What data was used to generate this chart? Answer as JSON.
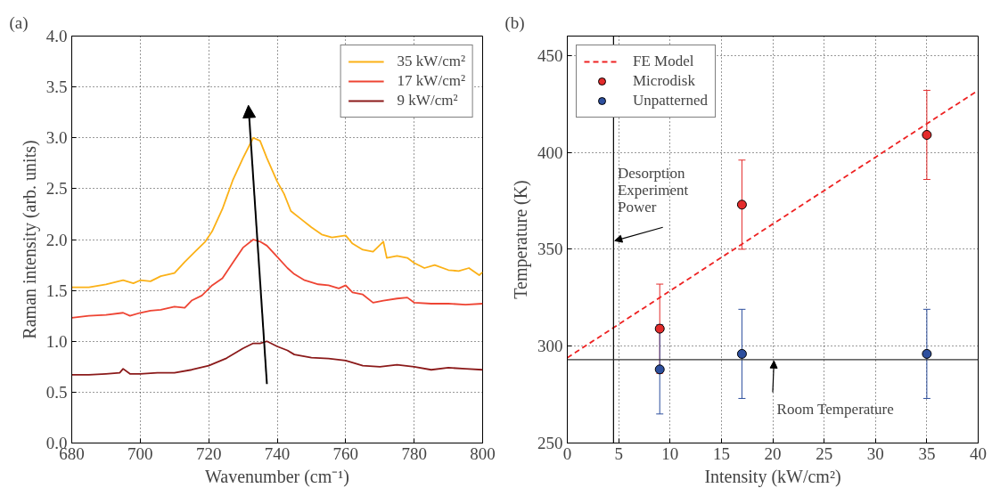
{
  "chart_data": [
    {
      "type": "line",
      "title": "(a)",
      "xlabel": "Wavenumber (cm⁻¹)",
      "ylabel": "Raman intensity (arb. units)",
      "xlim": [
        680,
        800
      ],
      "ylim": [
        0,
        4
      ],
      "xticks": [
        680,
        700,
        720,
        740,
        760,
        780,
        800
      ],
      "yticks": [
        {
          "value": 0,
          "label": "0.0"
        },
        {
          "value": 0.5,
          "label": "0.5"
        },
        {
          "value": 1,
          "label": "1.0"
        },
        {
          "value": 1.5,
          "label": "1.5"
        },
        {
          "value": 2,
          "label": "2.0"
        },
        {
          "value": 2.5,
          "label": "2.5"
        },
        {
          "value": 3,
          "label": "3.0"
        },
        {
          "value": 3.5,
          "label": "3.5"
        },
        {
          "value": 4,
          "label": "4.0"
        }
      ],
      "grid": true,
      "legend": "top right",
      "line_style": "solid",
      "marker": "none",
      "series": [
        {
          "name": "35 kW/cm²",
          "color": "#fbb117",
          "x": [
            680,
            685,
            690,
            695,
            698,
            700,
            703,
            706,
            710,
            713,
            716,
            719,
            721,
            724,
            727,
            730,
            733,
            735,
            737,
            740,
            742,
            744,
            747,
            750,
            753,
            756,
            760,
            762,
            765,
            768,
            771,
            772,
            775,
            778,
            780,
            783,
            786,
            790,
            793,
            796,
            799,
            800
          ],
          "values": [
            1.53,
            1.53,
            1.56,
            1.6,
            1.57,
            1.6,
            1.59,
            1.64,
            1.67,
            1.78,
            1.88,
            1.98,
            2.08,
            2.3,
            2.58,
            2.8,
            3.0,
            2.97,
            2.8,
            2.57,
            2.45,
            2.28,
            2.2,
            2.12,
            2.05,
            2.02,
            2.04,
            1.96,
            1.9,
            1.88,
            1.98,
            1.82,
            1.84,
            1.82,
            1.77,
            1.72,
            1.75,
            1.7,
            1.69,
            1.72,
            1.65,
            1.68
          ]
        },
        {
          "name": "17 kW/cm²",
          "color": "#ee4433",
          "x": [
            680,
            685,
            690,
            695,
            697,
            700,
            703,
            706,
            710,
            713,
            715,
            718,
            721,
            724,
            727,
            730,
            733,
            735,
            737,
            740,
            743,
            745,
            748,
            752,
            755,
            758,
            760,
            762,
            765,
            768,
            771,
            775,
            778,
            780,
            785,
            790,
            795,
            800
          ],
          "values": [
            1.23,
            1.25,
            1.26,
            1.28,
            1.25,
            1.28,
            1.3,
            1.31,
            1.34,
            1.33,
            1.4,
            1.45,
            1.55,
            1.62,
            1.77,
            1.92,
            2.0,
            1.98,
            1.94,
            1.83,
            1.72,
            1.66,
            1.6,
            1.56,
            1.55,
            1.52,
            1.55,
            1.48,
            1.46,
            1.38,
            1.4,
            1.42,
            1.43,
            1.38,
            1.37,
            1.37,
            1.36,
            1.37
          ]
        },
        {
          "name": "9 kW/cm²",
          "color": "#8b1a1a",
          "x": [
            680,
            685,
            690,
            694,
            695,
            697,
            700,
            705,
            710,
            715,
            720,
            725,
            730,
            733,
            735,
            737,
            740,
            743,
            745,
            750,
            755,
            760,
            765,
            770,
            775,
            780,
            785,
            790,
            795,
            800
          ],
          "values": [
            0.67,
            0.67,
            0.68,
            0.69,
            0.73,
            0.68,
            0.68,
            0.69,
            0.69,
            0.72,
            0.76,
            0.83,
            0.93,
            0.98,
            0.98,
            1.0,
            0.95,
            0.91,
            0.87,
            0.84,
            0.83,
            0.81,
            0.76,
            0.75,
            0.77,
            0.75,
            0.72,
            0.74,
            0.73,
            0.72
          ]
        }
      ]
    },
    {
      "type": "scatter",
      "title": "(b)",
      "xlabel": "Intensity (kW/cm²)",
      "ylabel": "Temperature (K)",
      "xlim": [
        0,
        40
      ],
      "ylim": [
        250,
        460
      ],
      "xticks": [
        0,
        5,
        10,
        15,
        20,
        25,
        30,
        35,
        40
      ],
      "yticks": [
        250,
        300,
        350,
        400,
        450
      ],
      "grid": true,
      "legend": "top left",
      "marker": "circle",
      "series": [
        {
          "name": "FE Model",
          "type": "line",
          "line_style": "dashed",
          "marker": "none",
          "color": "#ee2222",
          "x": [
            0,
            40
          ],
          "values": [
            294,
            432
          ]
        },
        {
          "name": "Microdisk",
          "color": "#e32b2b",
          "x": [
            9,
            17,
            35
          ],
          "values": [
            309,
            373,
            409
          ],
          "errors": [
            23,
            23,
            23
          ]
        },
        {
          "name": "Unpatterned",
          "color": "#2d4f9e",
          "x": [
            9,
            17,
            35
          ],
          "values": [
            288,
            296,
            296
          ],
          "errors": [
            23,
            23,
            23
          ]
        }
      ],
      "ref_lines": [
        {
          "axis": "x",
          "value": 4.5,
          "color": "#000000"
        },
        {
          "axis": "y",
          "value": 293,
          "color": "#333333"
        }
      ],
      "annotations": [
        {
          "text": "Desorption\nExperiment\nPower",
          "x": 4.5,
          "y": 355
        },
        {
          "text": "Room Temperature",
          "x": 20,
          "y": 293
        }
      ]
    }
  ]
}
